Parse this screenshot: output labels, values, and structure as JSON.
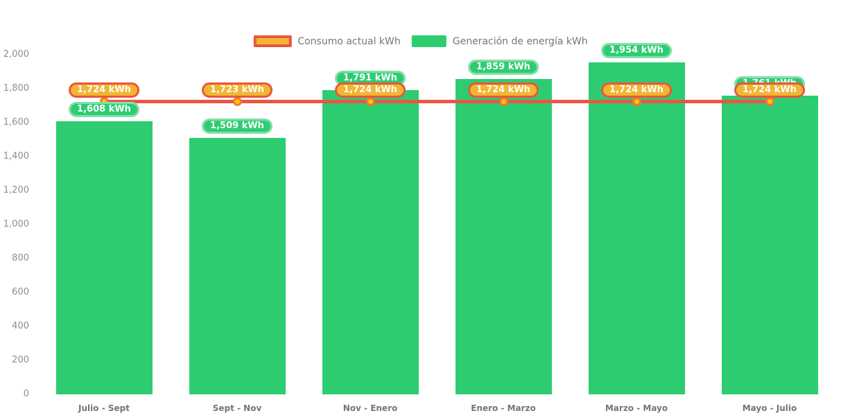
{
  "colors": {
    "bar_green": "#2ecc71",
    "green_pill_border": "#82dfab",
    "line_red": "#e85744",
    "pill_yellow": "#f2b632",
    "pill_red_border": "#e8573f",
    "marker_yellow": "#fdc50f",
    "marker_orange_ring": "#f2792d",
    "axis_text": "#8d8d8d",
    "category_text": "#757575"
  },
  "chart_data": {
    "type": "bar",
    "title": "",
    "categories": [
      "Julio - Sept",
      "Sept - Nov",
      "Nov - Enero",
      "Enero - Marzo",
      "Marzo - Mayo",
      "Mayo - Julio"
    ],
    "series": [
      {
        "name": "Generación de energía kWh",
        "type": "bar",
        "color": "#2ecc71",
        "values": [
          1608,
          1509,
          1791,
          1859,
          1954,
          1761
        ],
        "labels": [
          "1,608 kWh",
          "1,509 kWh",
          "1,791 kWh",
          "1,859 kWh",
          "1,954 kWh",
          "1,761 kWh"
        ]
      },
      {
        "name": "Consumo actual kWh",
        "type": "line",
        "color": "#e85744",
        "values": [
          1724,
          1723,
          1724,
          1724,
          1724,
          1724
        ],
        "labels": [
          "1,724 kWh",
          "1,723 kWh",
          "1,724 kWh",
          "1,724 kWh",
          "1,724 kWh",
          "1,724 kWh"
        ]
      }
    ],
    "xlabel": "",
    "ylabel": "",
    "ylim": [
      0,
      2000
    ],
    "ytick_step": 200,
    "ytick_labels": [
      "0",
      "200",
      "400",
      "600",
      "800",
      "1,000",
      "1,200",
      "1,400",
      "1,600",
      "1,800",
      "2,000"
    ],
    "grid": false,
    "legend_position": "top"
  }
}
